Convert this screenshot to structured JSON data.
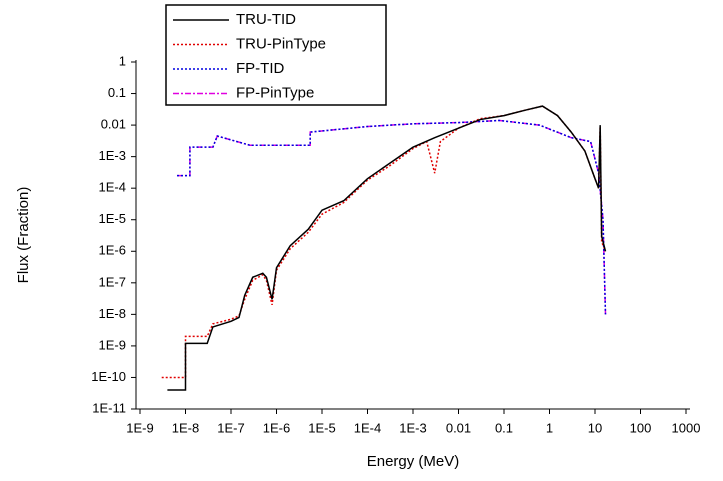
{
  "chart_data": {
    "type": "line",
    "x_label": "Energy (MeV)",
    "y_label": "Flux (Fraction)",
    "xscale": "log",
    "yscale": "log",
    "xlim": [
      1e-09,
      1000
    ],
    "ylim": [
      1e-11,
      1
    ],
    "xticks": [
      {
        "value": 1e-09,
        "label": "1E-9"
      },
      {
        "value": 1e-08,
        "label": "1E-8"
      },
      {
        "value": 1e-07,
        "label": "1E-7"
      },
      {
        "value": 1e-06,
        "label": "1E-6"
      },
      {
        "value": 1e-05,
        "label": "1E-5"
      },
      {
        "value": 0.0001,
        "label": "1E-4"
      },
      {
        "value": 0.001,
        "label": "1E-3"
      },
      0.01,
      0.1,
      1,
      10,
      100,
      1000
    ],
    "yticks": [
      1,
      0.1,
      0.01,
      {
        "value": 0.001,
        "label": "1E-3"
      },
      {
        "value": 0.0001,
        "label": "1E-4"
      },
      {
        "value": 1e-05,
        "label": "1E-5"
      },
      {
        "value": 1e-06,
        "label": "1E-6"
      },
      {
        "value": 1e-07,
        "label": "1E-7"
      },
      {
        "value": 1e-08,
        "label": "1E-8"
      },
      {
        "value": 1e-09,
        "label": "1E-9"
      },
      {
        "value": 1e-10,
        "label": "1E-10"
      },
      {
        "value": 1e-11,
        "label": "1E-11"
      }
    ],
    "legend": "top-left",
    "series": [
      {
        "name": "TRU-TID",
        "color": "#000000",
        "line_style": "solid",
        "x": [
          4e-09,
          1e-08,
          1e-08,
          3e-08,
          4e-08,
          1e-07,
          1.5e-07,
          2e-07,
          3e-07,
          5e-07,
          6e-07,
          8e-07,
          1e-06,
          2e-06,
          5e-06,
          1e-05,
          3e-05,
          0.0001,
          0.0003,
          0.001,
          0.003,
          0.01,
          0.03,
          0.1,
          0.3,
          0.7,
          1.5,
          3,
          6,
          10,
          12,
          13,
          14,
          17
        ],
        "values": [
          4e-11,
          4e-11,
          1.2e-09,
          1.2e-09,
          4e-09,
          6e-09,
          8e-09,
          4e-08,
          1.5e-07,
          2e-07,
          1.5e-07,
          3e-08,
          3e-07,
          1.5e-06,
          5e-06,
          2e-05,
          4e-05,
          0.0002,
          0.0006,
          0.002,
          0.004,
          0.008,
          0.015,
          0.02,
          0.03,
          0.04,
          0.02,
          0.006,
          0.0015,
          0.0002,
          0.0001,
          0.01,
          3e-06,
          1e-06
        ]
      },
      {
        "name": "TRU-PinType",
        "color": "#e00000",
        "line_style": "dotted",
        "x": [
          3e-09,
          1e-08,
          1e-08,
          3e-08,
          4e-08,
          1e-07,
          1.5e-07,
          2e-07,
          3e-07,
          5e-07,
          6e-07,
          8e-07,
          1e-06,
          2e-06,
          5e-06,
          1e-05,
          3e-05,
          0.0001,
          0.0003,
          0.001,
          0.002,
          0.003,
          0.004,
          0.01,
          0.03,
          0.1,
          0.3,
          0.7,
          1.5,
          3,
          6,
          10,
          12,
          13,
          14,
          17
        ],
        "values": [
          1e-10,
          1e-10,
          2e-09,
          2e-09,
          5e-09,
          7e-09,
          9e-09,
          3e-08,
          1.2e-07,
          1.8e-07,
          1.2e-07,
          2e-08,
          2.5e-07,
          1.2e-06,
          4e-06,
          1.5e-05,
          3.5e-05,
          0.00018,
          0.0005,
          0.0018,
          0.003,
          0.0003,
          0.003,
          0.008,
          0.016,
          0.02,
          0.03,
          0.04,
          0.02,
          0.006,
          0.0015,
          0.0002,
          0.0001,
          0.009,
          2e-06,
          1e-06
        ]
      },
      {
        "name": "FP-TID",
        "color": "#0000e0",
        "line_style": "dotted",
        "x": [
          6.5e-09,
          1.25e-08,
          1.25e-08,
          4e-08,
          5e-08,
          2.6e-07,
          5.5e-06,
          5.5e-06,
          0.0001,
          0.001,
          0.01,
          0.08,
          0.6,
          3,
          8,
          12,
          15,
          17
        ],
        "values": [
          0.00025,
          0.00025,
          0.002,
          0.002,
          0.0045,
          0.0023,
          0.0023,
          0.006,
          0.009,
          0.011,
          0.012,
          0.014,
          0.01,
          0.004,
          0.003,
          0.0003,
          1e-05,
          1e-08
        ]
      },
      {
        "name": "FP-PinType",
        "color": "#e000e0",
        "line_style": "dashdot",
        "x": [
          6.5e-09,
          1.25e-08,
          1.25e-08,
          4e-08,
          5e-08,
          2.6e-07,
          5.5e-06,
          5.5e-06,
          0.0001,
          0.001,
          0.01,
          0.08,
          0.6,
          3,
          8,
          12,
          15,
          17
        ],
        "values": [
          0.00025,
          0.00025,
          0.002,
          0.002,
          0.0045,
          0.0023,
          0.0023,
          0.006,
          0.009,
          0.011,
          0.012,
          0.014,
          0.01,
          0.004,
          0.003,
          0.0003,
          1e-05,
          1e-08
        ]
      }
    ]
  }
}
